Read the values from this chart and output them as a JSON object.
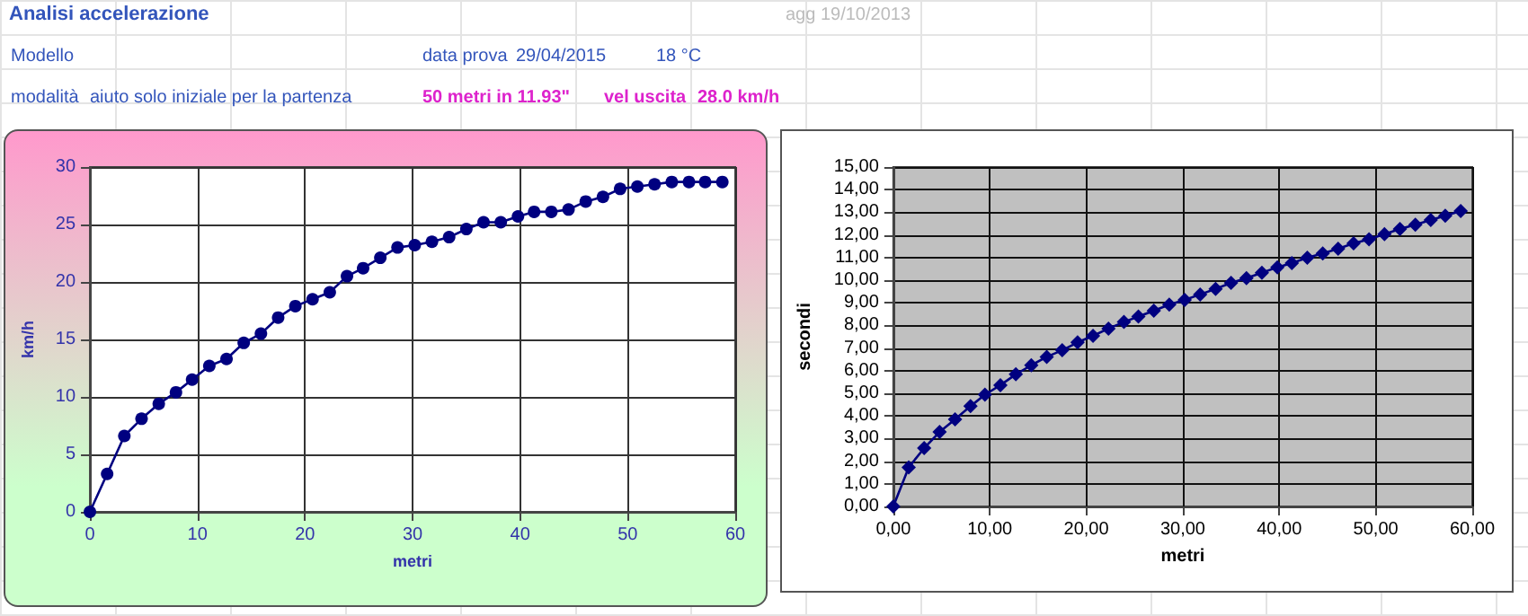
{
  "chart_data": [
    {
      "type": "line",
      "title": "Analisi accelerazione",
      "annotations": [
        "agg 19/10/2013",
        "Modello",
        "data prova",
        "29/04/2015",
        "18 °C",
        "modalità",
        "aiuto solo iniziale per la partenza",
        "50 metri in 11.93\"",
        "vel uscita",
        "28.0 km/h"
      ],
      "xlabel": "metri",
      "ylabel": "km/h",
      "x": [
        0,
        1.6,
        3.2,
        4.8,
        6.4,
        8.0,
        9.5,
        11.1,
        12.7,
        14.3,
        15.9,
        17.5,
        19.1,
        20.7,
        22.3,
        23.9,
        25.4,
        27.0,
        28.6,
        30.2,
        31.8,
        33.4,
        35.0,
        36.6,
        38.2,
        39.8,
        41.3,
        42.9,
        44.5,
        46.1,
        47.7,
        49.3,
        50.9,
        52.5,
        54.1,
        55.7,
        57.2,
        58.8
      ],
      "series": [
        {
          "color": "#000080",
          "values": [
            0,
            3.3,
            6.6,
            8.1,
            9.4,
            10.4,
            11.5,
            12.7,
            13.3,
            14.7,
            15.5,
            16.9,
            17.9,
            18.5,
            19.1,
            20.5,
            21.2,
            22.1,
            23.0,
            23.2,
            23.5,
            23.9,
            24.6,
            25.2,
            25.2,
            25.7,
            26.1,
            26.1,
            26.3,
            27.0,
            27.4,
            28.1,
            28.3,
            28.5,
            28.7,
            28.7,
            28.7,
            28.7
          ]
        }
      ],
      "xlim": [
        0,
        60
      ],
      "xticks": [
        0,
        10,
        20,
        30,
        40,
        50,
        60
      ],
      "ylim": [
        0,
        30
      ],
      "yticks": [
        0,
        5,
        10,
        15,
        20,
        25,
        30
      ],
      "grid": true,
      "marker": "circle",
      "line_style": "solid"
    },
    {
      "type": "line",
      "xlabel": "metri",
      "ylabel": "secondi",
      "x": [
        0,
        1.6,
        3.2,
        4.8,
        6.4,
        8.0,
        9.5,
        11.1,
        12.7,
        14.3,
        15.9,
        17.5,
        19.1,
        20.7,
        22.3,
        23.9,
        25.4,
        27.0,
        28.6,
        30.2,
        31.8,
        33.4,
        35.0,
        36.6,
        38.2,
        39.8,
        41.3,
        42.9,
        44.5,
        46.1,
        47.7,
        49.3,
        50.9,
        52.5,
        54.1,
        55.7,
        57.2,
        58.8
      ],
      "series": [
        {
          "color": "#000080",
          "values": [
            0,
            1.73,
            2.58,
            3.29,
            3.85,
            4.43,
            4.94,
            5.36,
            5.84,
            6.24,
            6.61,
            6.9,
            7.25,
            7.54,
            7.86,
            8.15,
            8.39,
            8.65,
            8.92,
            9.13,
            9.37,
            9.61,
            9.88,
            10.09,
            10.33,
            10.57,
            10.75,
            10.99,
            11.18,
            11.39,
            11.63,
            11.81,
            12.03,
            12.26,
            12.45,
            12.66,
            12.85,
            13.06
          ]
        }
      ],
      "xlim": [
        0,
        60
      ],
      "xticks": [
        {
          "value": 0,
          "label": "0,00"
        },
        {
          "value": 10,
          "label": "10,00"
        },
        {
          "value": 20,
          "label": "20,00"
        },
        {
          "value": 30,
          "label": "30,00"
        },
        {
          "value": 40,
          "label": "40,00"
        },
        {
          "value": 50,
          "label": "50,00"
        },
        {
          "value": 60,
          "label": "60,00"
        }
      ],
      "ylim": [
        0,
        15
      ],
      "yticks": [
        {
          "value": 0,
          "label": "0,00"
        },
        {
          "value": 1,
          "label": "1,00"
        },
        {
          "value": 2,
          "label": "2,00"
        },
        {
          "value": 3,
          "label": "3,00"
        },
        {
          "value": 4,
          "label": "4,00"
        },
        {
          "value": 5,
          "label": "5,00"
        },
        {
          "value": 6,
          "label": "6,00"
        },
        {
          "value": 7,
          "label": "7,00"
        },
        {
          "value": 8,
          "label": "8,00"
        },
        {
          "value": 9,
          "label": "9,00"
        },
        {
          "value": 10,
          "label": "10,00"
        },
        {
          "value": 11,
          "label": "11,00"
        },
        {
          "value": 12,
          "label": "12,00"
        },
        {
          "value": 13,
          "label": "13,00"
        },
        {
          "value": 14,
          "label": "14,00"
        },
        {
          "value": 15,
          "label": "15,00"
        }
      ],
      "grid": true,
      "marker": "diamond",
      "line_style": "solid"
    }
  ]
}
